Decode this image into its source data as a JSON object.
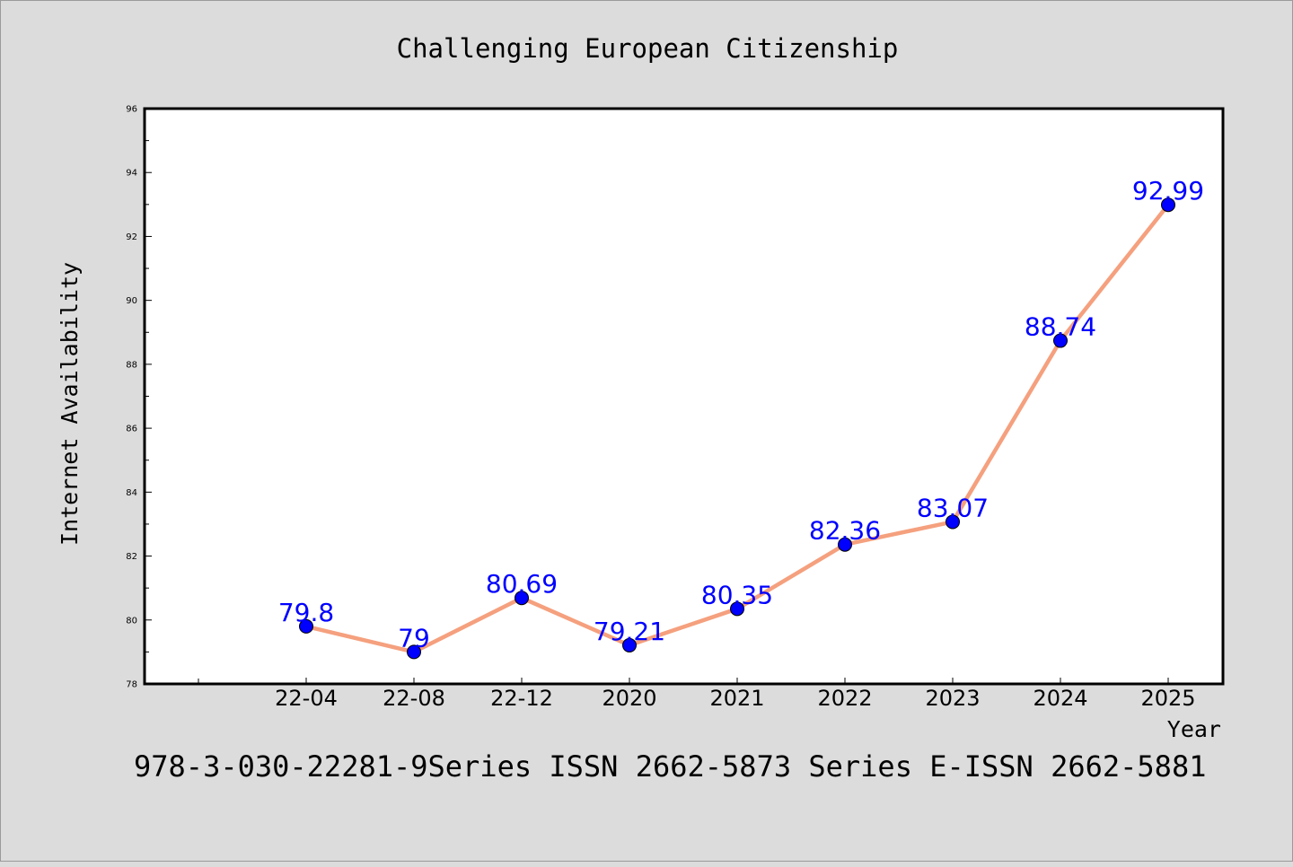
{
  "chart_data": {
    "type": "line",
    "title": "Challenging European Citizenship",
    "xlabel": "Year",
    "ylabel": "Internet Availability",
    "categories": [
      "22-04",
      "22-08",
      "22-12",
      "2020",
      "2021",
      "2022",
      "2023",
      "2024",
      "2025"
    ],
    "series": [
      {
        "values": [
          79.8,
          79,
          80.69,
          79.21,
          80.35,
          82.36,
          83.07,
          88.74,
          92.99
        ]
      }
    ],
    "data_labels": [
      "79.8",
      "79",
      "80.69",
      "79.21",
      "80.35",
      "82.36",
      "83.07",
      "88.74",
      "92.99"
    ],
    "ylim": [
      78,
      96
    ],
    "yticks": [
      78,
      80,
      82,
      84,
      86,
      88,
      90,
      92,
      94,
      96
    ],
    "grid": false,
    "legend": "none"
  },
  "footer": "978-3-030-22281-9Series ISSN 2662-5873 Series E-ISSN 2662-5881",
  "colors": {
    "background": "#dcdcdc",
    "plot_background": "#ffffff",
    "line": "#f5a07e",
    "marker": "#0000ff",
    "data_label": "#0000ff"
  }
}
